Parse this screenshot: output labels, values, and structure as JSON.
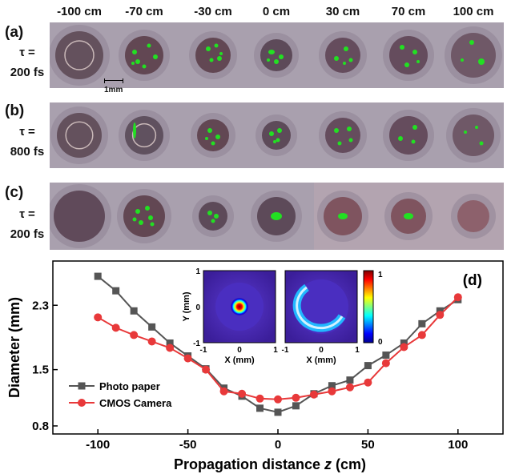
{
  "column_headers": [
    "-100 cm",
    "-70 cm",
    "-30 cm",
    "0 cm",
    "30 cm",
    "70 cm",
    "100 cm"
  ],
  "rows": [
    {
      "label": "(a)",
      "tau_line1": "τ =",
      "tau_line2": "200 fs"
    },
    {
      "label": "(b)",
      "tau_line1": "τ =",
      "tau_line2": "800 fs"
    },
    {
      "label": "(c)",
      "tau_line1": "τ =",
      "tau_line2": "200 fs"
    }
  ],
  "scale_bar": "1mm",
  "colors": {
    "spot_green": "#22e022",
    "photo_line": "#555555",
    "cmos_line": "#e8393a",
    "strip_bg": "#a9a0ae"
  },
  "chart_data": {
    "type": "line",
    "panel_label": "(d)",
    "xlabel": "Propagation distance z (cm)",
    "ylabel": "Diameter (mm)",
    "xlim": [
      -125,
      125
    ],
    "ylim": [
      0.7,
      2.85
    ],
    "xticks": [
      -100,
      -50,
      0,
      50,
      100
    ],
    "yticks": [
      0.8,
      1.5,
      2.3
    ],
    "legend_position": "bottom-left",
    "series": [
      {
        "name": "Photo paper",
        "marker": "square",
        "color": "#555555",
        "x": [
          -100,
          -90,
          -80,
          -70,
          -60,
          -50,
          -40,
          -30,
          -20,
          -10,
          0,
          10,
          20,
          30,
          40,
          50,
          60,
          70,
          80,
          90,
          100
        ],
        "y": [
          2.66,
          2.48,
          2.23,
          2.03,
          1.83,
          1.67,
          1.51,
          1.27,
          1.17,
          1.02,
          0.97,
          1.05,
          1.2,
          1.3,
          1.37,
          1.55,
          1.68,
          1.83,
          2.07,
          2.23,
          2.37
        ]
      },
      {
        "name": "CMOS Camera",
        "marker": "circle",
        "color": "#e8393a",
        "x": [
          -100,
          -90,
          -80,
          -70,
          -60,
          -50,
          -40,
          -30,
          -20,
          -10,
          0,
          10,
          20,
          30,
          40,
          50,
          60,
          70,
          80,
          90,
          100
        ],
        "y": [
          2.15,
          2.02,
          1.93,
          1.85,
          1.77,
          1.64,
          1.5,
          1.23,
          1.2,
          1.14,
          1.13,
          1.15,
          1.19,
          1.23,
          1.28,
          1.34,
          1.58,
          1.78,
          1.93,
          2.18,
          2.4
        ]
      }
    ],
    "insets": [
      {
        "xlabel": "X (mm)",
        "ylabel": "Y (mm)",
        "xticks": [
          "-1",
          "0",
          "1"
        ],
        "yticks": [
          "1",
          "0",
          "-1"
        ]
      },
      {
        "xlabel": "X (mm)",
        "xticks": [
          "-1",
          "0",
          "1"
        ]
      }
    ],
    "colorbar": {
      "max_label": "1",
      "min_label": "0"
    }
  }
}
